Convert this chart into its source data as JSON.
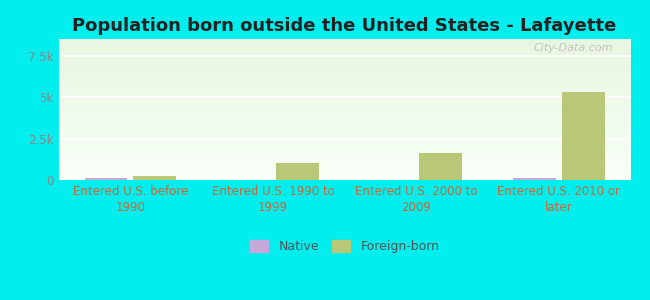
{
  "title": "Population born outside the United States - Lafayette",
  "categories": [
    "Entered U.S. before\n1990",
    "Entered U.S. 1990 to\n1999",
    "Entered U.S. 2000 to\n2009",
    "Entered U.S. 2010 or\nlater"
  ],
  "native_values": [
    150,
    0,
    0,
    120
  ],
  "foreign_born_values": [
    250,
    1000,
    1600,
    5300
  ],
  "native_color": "#c8a8d8",
  "foreign_born_color": "#b8c878",
  "background_color": "#00eeee",
  "plot_bg_top": "#e8f5e0",
  "plot_bg_bottom": "#f8fff8",
  "ylim": [
    0,
    8500
  ],
  "yticks": [
    0,
    2500,
    5000,
    7500
  ],
  "ytick_labels": [
    "0",
    "2.5k",
    "5k",
    "7.5k"
  ],
  "title_fontsize": 13,
  "tick_fontsize": 8.5,
  "xlabel_color": "#cc6633",
  "ytick_color": "#888888",
  "legend_labels": [
    "Native",
    "Foreign-born"
  ],
  "watermark": "City-Data.com",
  "bar_width": 0.3
}
